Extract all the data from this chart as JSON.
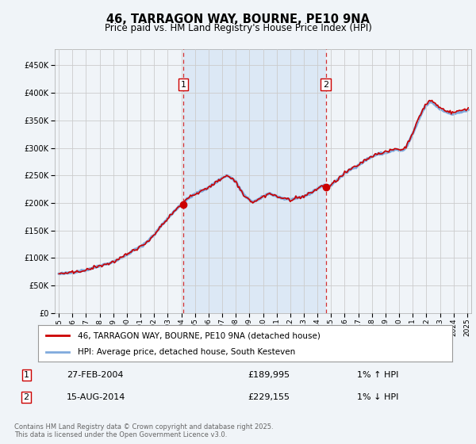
{
  "title": "46, TARRAGON WAY, BOURNE, PE10 9NA",
  "subtitle": "Price paid vs. HM Land Registry's House Price Index (HPI)",
  "background_color": "#f0f4f8",
  "plot_bg_color": "#f0f4f8",
  "shaded_bg_color": "#dce8f5",
  "grid_color": "#cccccc",
  "red_line_color": "#cc0000",
  "blue_line_color": "#80aadd",
  "ylim": [
    0,
    480000
  ],
  "yticks": [
    0,
    50000,
    100000,
    150000,
    200000,
    250000,
    300000,
    350000,
    400000,
    450000
  ],
  "ytick_labels": [
    "£0",
    "£50K",
    "£100K",
    "£150K",
    "£200K",
    "£250K",
    "£300K",
    "£350K",
    "£400K",
    "£450K"
  ],
  "xlim_start": 1994.7,
  "xlim_end": 2025.3,
  "xtick_years": [
    1995,
    1996,
    1997,
    1998,
    1999,
    2000,
    2001,
    2002,
    2003,
    2004,
    2005,
    2006,
    2007,
    2008,
    2009,
    2010,
    2011,
    2012,
    2013,
    2014,
    2015,
    2016,
    2017,
    2018,
    2019,
    2020,
    2021,
    2022,
    2023,
    2024,
    2025
  ],
  "marker1_x": 2004.15,
  "marker1_y": 189995,
  "marker1_label": "1",
  "marker1_date": "27-FEB-2004",
  "marker1_price": "£189,995",
  "marker1_hpi": "1% ↑ HPI",
  "marker2_x": 2014.62,
  "marker2_y": 229155,
  "marker2_label": "2",
  "marker2_date": "15-AUG-2014",
  "marker2_price": "£229,155",
  "marker2_hpi": "1% ↓ HPI",
  "legend_line1": "46, TARRAGON WAY, BOURNE, PE10 9NA (detached house)",
  "legend_line2": "HPI: Average price, detached house, South Kesteven",
  "footnote": "Contains HM Land Registry data © Crown copyright and database right 2025.\nThis data is licensed under the Open Government Licence v3.0."
}
